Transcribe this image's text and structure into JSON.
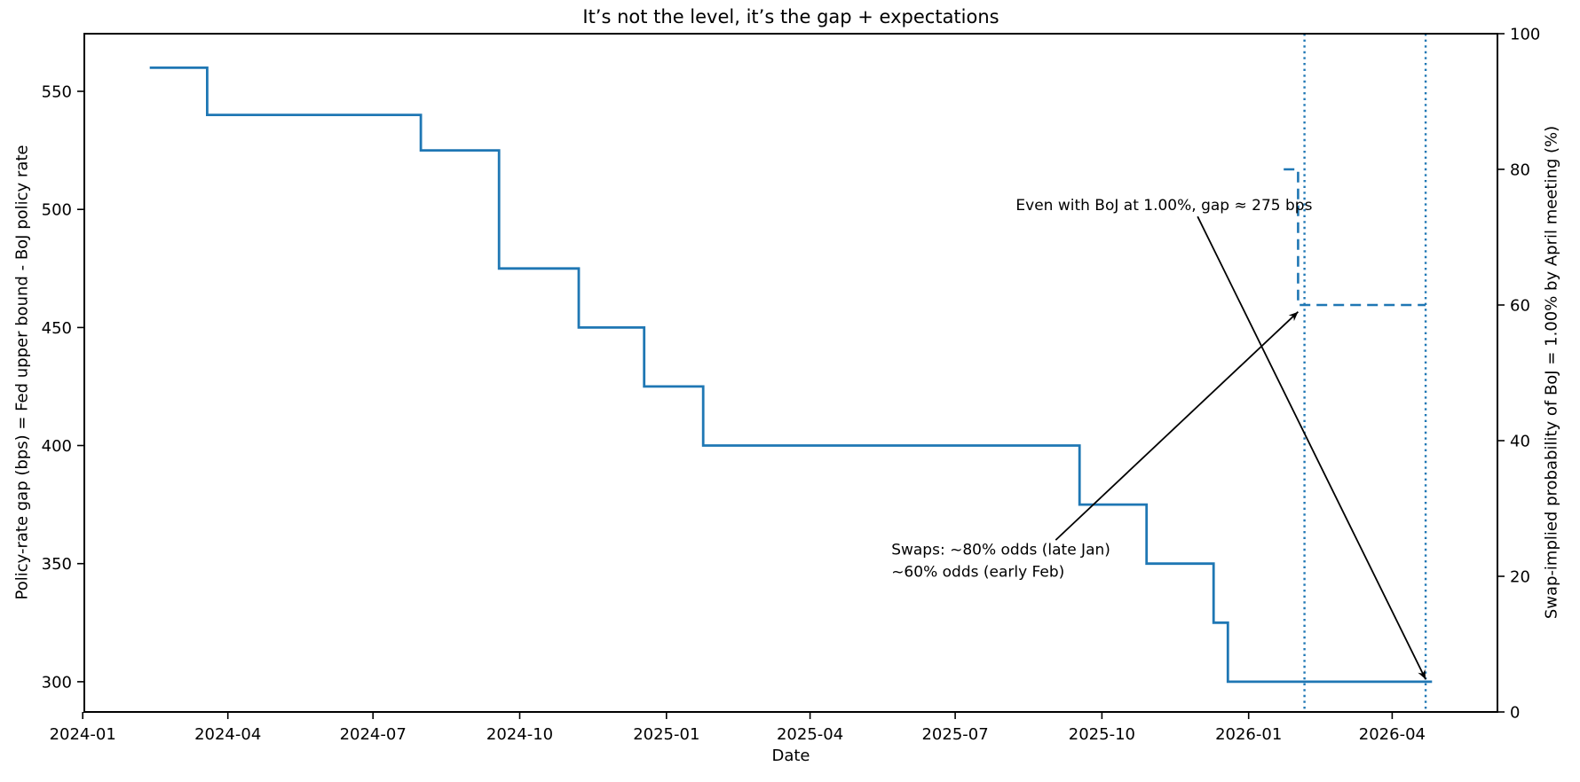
{
  "chart_data": {
    "type": "line",
    "subtype": "step-post",
    "title": "It’s not the level, it’s the gap + expectations",
    "xlabel": "Date",
    "grid": false,
    "legend": "none",
    "line_color": "#1f77b4",
    "x_domain": [
      "2024-01-02",
      "2026-06-06"
    ],
    "x_ticks": [
      {
        "date": "2024-01-01",
        "label": "2024-01"
      },
      {
        "date": "2024-04-01",
        "label": "2024-04"
      },
      {
        "date": "2024-07-01",
        "label": "2024-07"
      },
      {
        "date": "2024-10-01",
        "label": "2024-10"
      },
      {
        "date": "2025-01-01",
        "label": "2025-01"
      },
      {
        "date": "2025-04-01",
        "label": "2025-04"
      },
      {
        "date": "2025-07-01",
        "label": "2025-07"
      },
      {
        "date": "2025-10-01",
        "label": "2025-10"
      },
      {
        "date": "2026-01-01",
        "label": "2026-01"
      },
      {
        "date": "2026-04-01",
        "label": "2026-04"
      }
    ],
    "y_left": {
      "label": "Policy-rate gap (bps) = Fed upper bound - BoJ policy rate",
      "domain": [
        287.2,
        574.4
      ],
      "ticks": [
        300,
        350,
        400,
        450,
        500,
        550
      ]
    },
    "y_right": {
      "label": "Swap-implied probability of BoJ = 1.00% by April meeting (%)",
      "domain": [
        0,
        100
      ],
      "ticks": [
        0,
        20,
        40,
        60,
        80,
        100
      ]
    },
    "series": [
      {
        "name": "policy-rate-gap",
        "axis": "left",
        "style": "solid",
        "points": [
          [
            "2024-02-12",
            560
          ],
          [
            "2024-03-19",
            540
          ],
          [
            "2024-07-31",
            525
          ],
          [
            "2024-09-18",
            475
          ],
          [
            "2024-11-07",
            450
          ],
          [
            "2024-12-18",
            425
          ],
          [
            "2025-01-24",
            400
          ],
          [
            "2025-09-17",
            375
          ],
          [
            "2025-10-29",
            350
          ],
          [
            "2025-12-10",
            325
          ],
          [
            "2025-12-19",
            300
          ],
          [
            "2026-04-26",
            300
          ]
        ]
      },
      {
        "name": "swap-implied-probability",
        "axis": "right",
        "style": "dashed",
        "points": [
          [
            "2026-01-23",
            80
          ],
          [
            "2026-02-01",
            60
          ],
          [
            "2026-04-22",
            60
          ]
        ]
      }
    ],
    "vlines": [
      {
        "date": "2026-02-05",
        "style": "dotted"
      },
      {
        "date": "2026-04-22",
        "style": "dotted"
      }
    ],
    "annotations": [
      {
        "lines": [
          "Even with BoJ at 1.00%, gap ≈ 275 bps"
        ],
        "text_at": {
          "date": "2025-08-08",
          "axis": "left",
          "value": 502,
          "anchor": "start"
        },
        "arrow_from": {
          "date": "2025-11-30",
          "axis": "left",
          "value": 497
        },
        "arrow_to": {
          "date": "2026-04-22",
          "axis": "left",
          "value": 301
        }
      },
      {
        "lines": [
          "Swaps: ~80% odds (late Jan)",
          "~60% odds (early Feb)"
        ],
        "text_at": {
          "date": "2025-05-22",
          "axis": "left",
          "value": 356,
          "anchor": "start"
        },
        "arrow_from": {
          "date": "2025-09-02",
          "axis": "left",
          "value": 360
        },
        "arrow_to": {
          "date": "2026-02-01",
          "axis": "right",
          "value": 59
        }
      }
    ]
  }
}
